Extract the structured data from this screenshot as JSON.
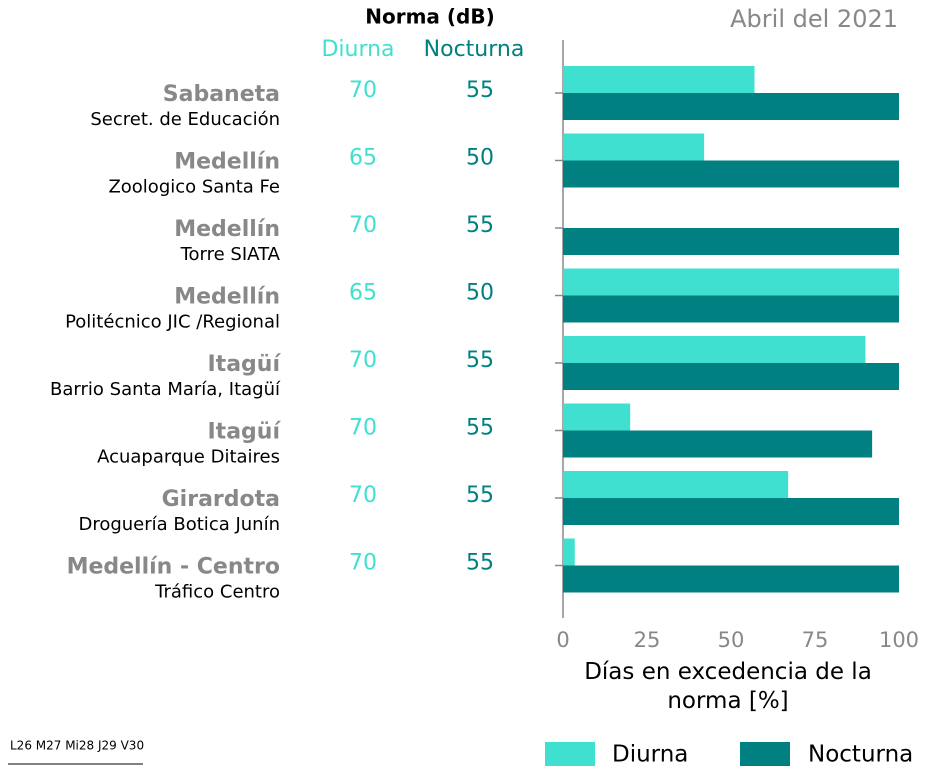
{
  "chart_data": {
    "type": "barh",
    "title": "Abril del 2021",
    "norma_title": "Norma (dB)",
    "cities": [
      "Sabaneta",
      "Medellín",
      "Medellín",
      "Medellín",
      "Itagüí",
      "Itagüí",
      "Girardota",
      "Medellín - Centro"
    ],
    "stations": [
      "Secret. de Educación",
      "Zoologico Santa Fe",
      "Torre SIATA",
      "Politécnico JIC /Regional",
      "Barrio Santa María, Itagüí",
      "Acuaparque Ditaires",
      "Droguería Botica Junín",
      "Tráfico Centro"
    ],
    "norma_diurna": [
      70,
      65,
      70,
      65,
      70,
      70,
      70,
      70
    ],
    "norma_nocturna": [
      55,
      50,
      55,
      50,
      55,
      55,
      55,
      55
    ],
    "series": [
      {
        "name": "Diurna",
        "color": "#40e0d0",
        "values": [
          57,
          42,
          0,
          100,
          90,
          20,
          67,
          3.5
        ]
      },
      {
        "name": "Nocturna",
        "color": "#008080",
        "values": [
          100,
          100,
          100,
          100,
          100,
          92,
          100,
          100
        ]
      }
    ],
    "xlim": [
      0,
      100
    ],
    "xticks": [
      0,
      25,
      50,
      75,
      100
    ],
    "xlabel": "Días en excedencia de la norma [%]",
    "footnote": "L26 M27 Mi28 J29 V30"
  }
}
